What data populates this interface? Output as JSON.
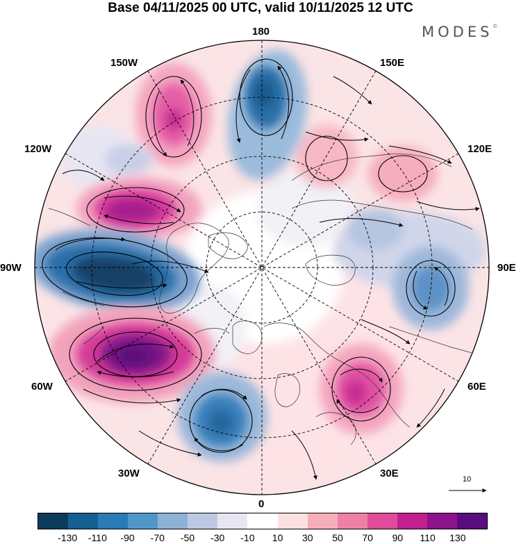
{
  "header": {
    "title": "Base 04/11/2025 00 UTC, valid 10/11/2025 12 UTC",
    "brand": "MODES",
    "brand_mark": "©"
  },
  "longitude_labels": {
    "lon_180": "180",
    "lon_150e": "150E",
    "lon_120e": "120E",
    "lon_90e": "90E",
    "lon_60e": "60E",
    "lon_30e": "30E",
    "lon_0": "0",
    "lon_30w": "30W",
    "lon_60w": "60W",
    "lon_90w": "90W",
    "lon_120w": "120W",
    "lon_150w": "150W"
  },
  "reference_vector": {
    "label": "10"
  },
  "colorbar": {
    "colors": [
      "#0d3b5c",
      "#145f91",
      "#2a7ab6",
      "#4f97c9",
      "#8cb2d8",
      "#bdc9e3",
      "#e6e6f2",
      "#ffffff",
      "#fde0e0",
      "#f7aebb",
      "#f07fa5",
      "#e04b9a",
      "#c21f8f",
      "#8c148a",
      "#5a0d7c"
    ],
    "tick_labels": [
      "-130",
      "-110",
      "-90",
      "-70",
      "-50",
      "-30",
      "-10",
      "10",
      "30",
      "50",
      "70",
      "90",
      "110",
      "130"
    ]
  },
  "anomaly_field": {
    "units": "contour interval 20",
    "centers": [
      {
        "name": "low-hudson",
        "value": -130
      },
      {
        "name": "low-north-pacific-180",
        "value": -90
      },
      {
        "name": "low-north-atlantic-30w",
        "value": -90
      },
      {
        "name": "low-central-siberia-90e",
        "value": -70
      },
      {
        "name": "low-siberia-110e",
        "value": -50
      },
      {
        "name": "low-gulf-alaska",
        "value": -30
      },
      {
        "name": "high-labrador-60w",
        "value": 130
      },
      {
        "name": "high-canada-110w",
        "value": 110
      },
      {
        "name": "high-bering-150w",
        "value": 90
      },
      {
        "name": "high-europe-45e",
        "value": 90
      },
      {
        "name": "high-far-east-130e",
        "value": 70
      },
      {
        "name": "high-east-siberia-150e",
        "value": 50
      }
    ]
  }
}
